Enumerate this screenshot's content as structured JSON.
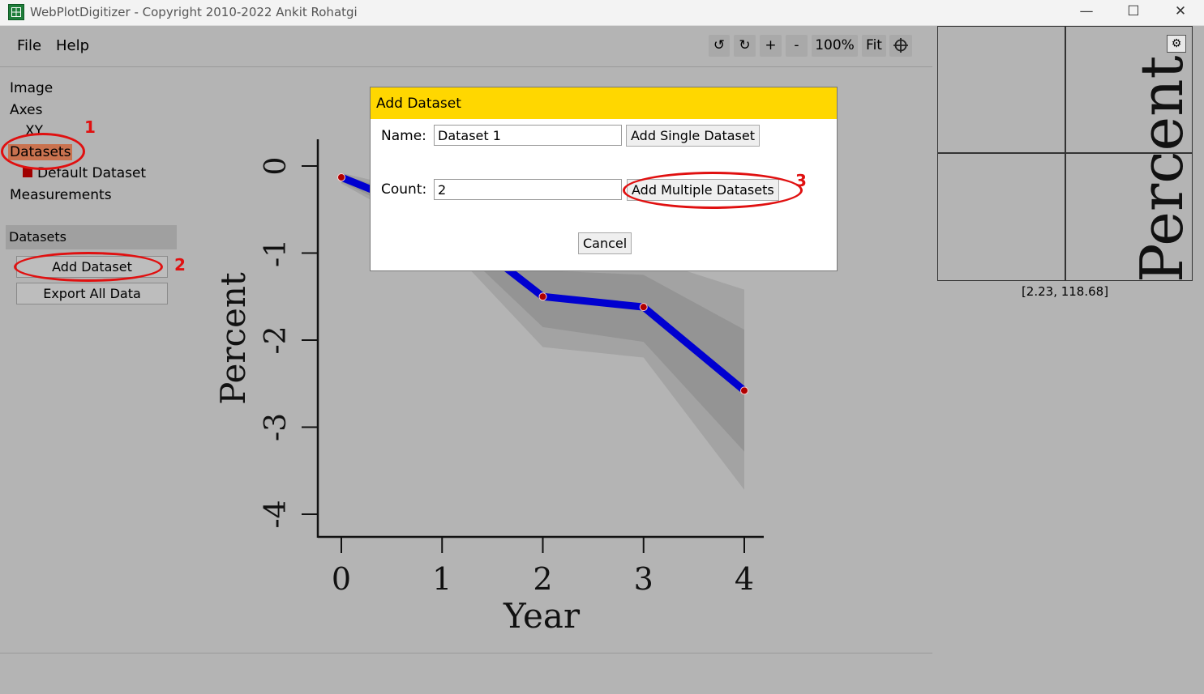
{
  "window": {
    "title": "WebPlotDigitizer - Copyright 2010-2022 Ankit Rohatgi",
    "minimize": "—",
    "maximize": "☐",
    "close": "✕"
  },
  "menu": {
    "file": "File",
    "help": "Help"
  },
  "toolbar": {
    "rotate_ccw": "↺",
    "rotate_cw": "↻",
    "zoom_in": "+",
    "zoom_out": "-",
    "zoom_level": "100%",
    "fit": "Fit"
  },
  "sidebar": {
    "tree": {
      "image": "Image",
      "axes": "Axes",
      "xy": "XY",
      "datasets": "Datasets",
      "default_dataset": "Default Dataset",
      "measurements": "Measurements"
    },
    "panel_title": "Datasets",
    "add_dataset": "Add Dataset",
    "export_all": "Export All Data"
  },
  "annotations": {
    "n1": "1",
    "n2": "2",
    "n3": "3"
  },
  "dialog": {
    "title": "Add Dataset",
    "name_label": "Name:",
    "name_value": "Dataset 1",
    "add_single": "Add Single Dataset",
    "count_label": "Count:",
    "count_value": "2",
    "add_multiple": "Add Multiple Datasets",
    "cancel": "Cancel"
  },
  "zoom": {
    "coordinates": "[2.23, 118.68]",
    "preview_text": "Percent"
  },
  "chart_data": {
    "type": "line",
    "xlabel": "Year",
    "ylabel": "Percent",
    "x": [
      0,
      1,
      2,
      3,
      4
    ],
    "xticks": [
      "0",
      "1",
      "2",
      "3",
      "4"
    ],
    "yticks": [
      "0",
      "-1",
      "-2",
      "-3",
      "-4"
    ],
    "xlim": [
      0,
      4
    ],
    "ylim": [
      -4,
      0
    ],
    "series": [
      {
        "values": [
          -0.13,
          -0.6,
          -1.5,
          -1.62,
          -2.58
        ],
        "color": "#0000d0"
      }
    ],
    "bands": [
      {
        "lower": [
          -0.2,
          -0.85,
          -2.08,
          -2.2,
          -3.72
        ],
        "upper": [
          -0.08,
          -0.35,
          -0.95,
          -1.05,
          -1.42
        ],
        "color": "#a3a3a3"
      },
      {
        "lower": [
          -0.18,
          -0.75,
          -1.85,
          -2.02,
          -3.28
        ],
        "upper": [
          -0.1,
          -0.45,
          -1.2,
          -1.25,
          -1.88
        ],
        "color": "#949494"
      }
    ],
    "point_color": "#b00000"
  }
}
